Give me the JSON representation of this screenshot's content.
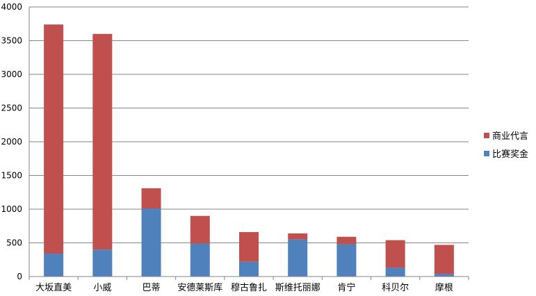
{
  "chart_data": {
    "type": "bar",
    "stacked": true,
    "categories": [
      "大坂直美",
      "小威",
      "巴蒂",
      "安德莱斯库",
      "穆古鲁扎",
      "斯维托丽娜",
      "肯宁",
      "科贝尔",
      "摩根"
    ],
    "series": [
      {
        "name": "比赛奖金",
        "color": "#4f81bd",
        "values": [
          340,
          400,
          1010,
          490,
          220,
          550,
          480,
          130,
          40
        ]
      },
      {
        "name": "商业代言",
        "color": "#c0504d",
        "values": [
          3400,
          3200,
          300,
          410,
          440,
          90,
          110,
          410,
          430
        ]
      }
    ],
    "ylim": [
      0,
      4000
    ],
    "yticks": [
      0,
      500,
      1000,
      1500,
      2000,
      2500,
      3000,
      3500,
      4000
    ],
    "grid": true,
    "legend": "right",
    "title": "",
    "xlabel": "",
    "ylabel": ""
  }
}
